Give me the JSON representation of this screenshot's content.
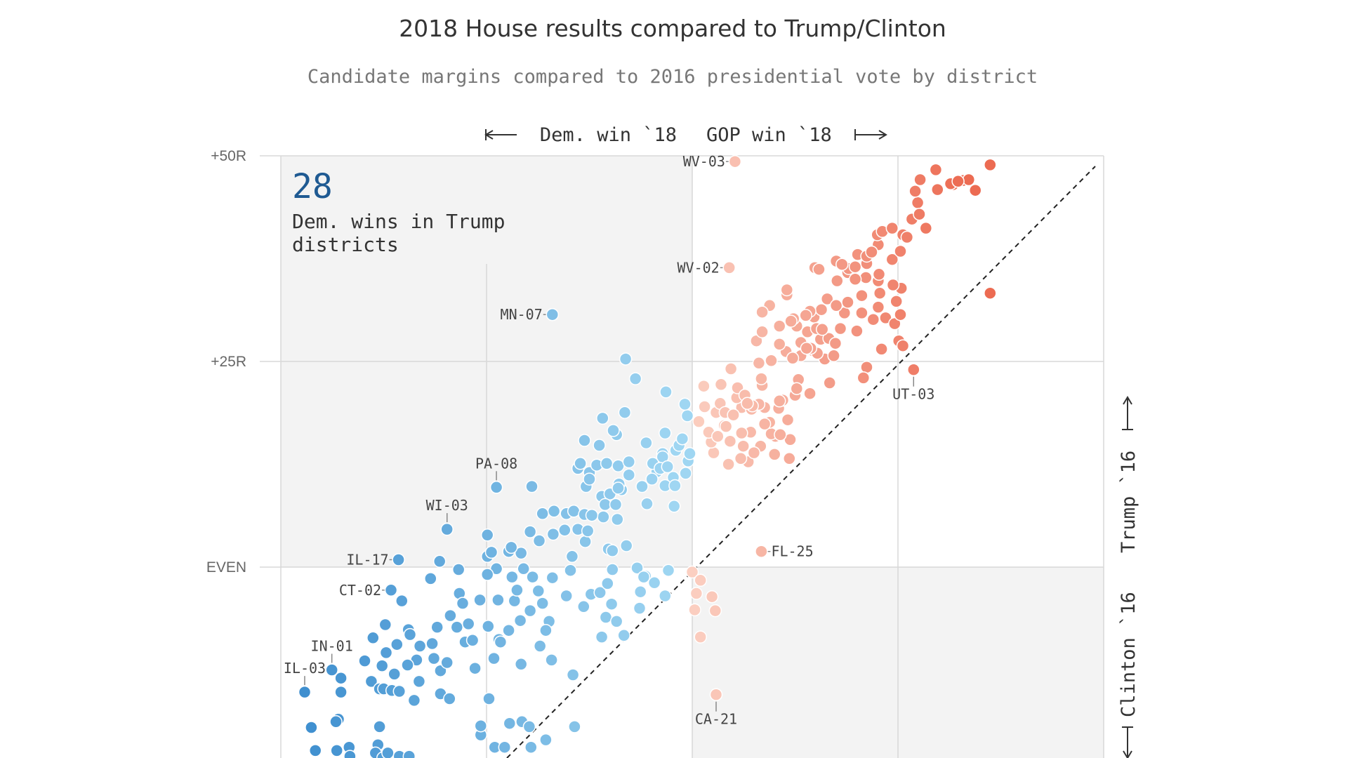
{
  "chart_data": {
    "type": "scatter",
    "title": "2018 House results compared to Trump/Clinton",
    "subtitle": "Candidate margins compared to 2016 presidential vote by district",
    "x_axis": {
      "left_label": "Dem. win `18",
      "right_label": "GOP win `18",
      "range": [
        -50,
        50
      ]
    },
    "y_axis": {
      "ticks": [
        "+50R",
        "+25R",
        "EVEN"
      ],
      "tick_values": [
        50,
        25,
        0
      ],
      "top_label": "Trump `16",
      "bottom_label": "Clinton `16",
      "range": [
        -24,
        50
      ]
    },
    "callout": {
      "number": "28",
      "line1": "Dem. wins in Trump",
      "line2": "districts"
    },
    "colors": {
      "dem_dark": "#3f8fcf",
      "dem_light": "#9fd6f2",
      "gop_dark": "#ec6b52",
      "gop_light": "#fbcfc1",
      "callout_number": "#1f5a92"
    },
    "labels": [
      {
        "name": "WV-03",
        "x": 5.2,
        "y": 49.3
      },
      {
        "name": "WV-02",
        "x": 4.5,
        "y": 36.4
      },
      {
        "name": "MN-07",
        "x": -17.0,
        "y": 30.7
      },
      {
        "name": "UT-03",
        "x": 26.9,
        "y": 24.0
      },
      {
        "name": "PA-08",
        "x": -23.8,
        "y": 9.7
      },
      {
        "name": "WI-03",
        "x": -29.8,
        "y": 4.6
      },
      {
        "name": "IL-17",
        "x": -35.7,
        "y": 0.9
      },
      {
        "name": "CT-02",
        "x": -36.6,
        "y": -2.8
      },
      {
        "name": "FL-25",
        "x": 8.4,
        "y": 1.9
      },
      {
        "name": "IN-01",
        "x": -43.8,
        "y": -12.5
      },
      {
        "name": "IL-03",
        "x": -47.1,
        "y": -15.2
      },
      {
        "name": "CA-21",
        "x": 2.9,
        "y": -15.5
      }
    ],
    "points": [
      [
        -47.1,
        -15.2
      ],
      [
        -46.3,
        -19.5
      ],
      [
        -45.8,
        -22.3
      ],
      [
        -43.8,
        -12.5
      ],
      [
        -42.7,
        -13.5
      ],
      [
        -42.7,
        -15.2
      ],
      [
        -43.0,
        -18.5
      ],
      [
        -43.3,
        -18.8
      ],
      [
        -43.2,
        -22.3
      ],
      [
        -41.7,
        -21.9
      ],
      [
        -41.6,
        -23.0
      ],
      [
        -39.8,
        -11.4
      ],
      [
        -39.0,
        -13.9
      ],
      [
        -38.0,
        -14.8
      ],
      [
        -37.7,
        -12.0
      ],
      [
        -37.5,
        -14.8
      ],
      [
        -38.0,
        -19.4
      ],
      [
        -38.2,
        -21.6
      ],
      [
        -38.5,
        -22.6
      ],
      [
        -37.6,
        -23.2
      ],
      [
        -37.0,
        -22.6
      ],
      [
        -36.6,
        -2.8
      ],
      [
        -37.3,
        -7.0
      ],
      [
        -35.3,
        -4.1
      ],
      [
        -34.5,
        -7.6
      ],
      [
        -34.3,
        -8.2
      ],
      [
        -33.1,
        -9.6
      ],
      [
        -33.5,
        -11.3
      ],
      [
        -34.6,
        -11.9
      ],
      [
        -36.5,
        -15.0
      ],
      [
        -35.6,
        -15.1
      ],
      [
        -33.8,
        -16.2
      ],
      [
        -35.6,
        -23.0
      ],
      [
        -34.4,
        -23.0
      ],
      [
        -31.6,
        -9.3
      ],
      [
        -31.4,
        -11.1
      ],
      [
        -30.6,
        -12.6
      ],
      [
        -29.8,
        -11.6
      ],
      [
        -30.6,
        -15.4
      ],
      [
        -29.5,
        -16.0
      ],
      [
        -26.4,
        -12.3
      ],
      [
        -27.6,
        -9.1
      ],
      [
        -28.6,
        -7.3
      ],
      [
        -29.4,
        -5.9
      ],
      [
        -28.3,
        -3.2
      ],
      [
        -27.2,
        -6.9
      ],
      [
        -24.8,
        -7.2
      ],
      [
        -23.5,
        -8.8
      ],
      [
        -24.7,
        -16.0
      ],
      [
        -20.8,
        -11.8
      ],
      [
        -25.7,
        -20.4
      ],
      [
        -25.7,
        -19.3
      ],
      [
        -24.0,
        -21.9
      ],
      [
        -19.6,
        -21.9
      ],
      [
        -22.2,
        -19.0
      ],
      [
        -21.6,
        -4.1
      ],
      [
        -27.9,
        -4.4
      ],
      [
        -25.8,
        -4.0
      ],
      [
        -23.6,
        -4.0
      ],
      [
        -21.9,
        -1.2
      ],
      [
        -19.4,
        -1.2
      ],
      [
        -18.7,
        -2.9
      ],
      [
        -18.2,
        -4.4
      ],
      [
        -19.7,
        -5.3
      ],
      [
        -21.3,
        -2.8
      ],
      [
        -20.9,
        -6.5
      ],
      [
        -17.4,
        -6.6
      ],
      [
        -17.0,
        -1.3
      ],
      [
        -20.5,
        -0.2
      ],
      [
        -23.8,
        -0.2
      ],
      [
        -24.9,
        -0.9
      ],
      [
        -28.4,
        -0.3
      ],
      [
        -24.9,
        1.3
      ],
      [
        -24.4,
        1.8
      ],
      [
        -22.3,
        1.9
      ],
      [
        -20.8,
        1.7
      ],
      [
        -18.6,
        3.2
      ],
      [
        -19.7,
        4.3
      ],
      [
        -16.9,
        4.0
      ],
      [
        -15.5,
        4.5
      ],
      [
        -13.9,
        4.6
      ],
      [
        -15.3,
        6.5
      ],
      [
        -18.2,
        6.5
      ],
      [
        -16.8,
        6.8
      ],
      [
        -14.4,
        6.8
      ],
      [
        -24.9,
        3.9
      ],
      [
        -22.0,
        2.4
      ],
      [
        -15.3,
        -3.5
      ],
      [
        -17.8,
        -7.7
      ],
      [
        -17.1,
        -11.3
      ],
      [
        -14.5,
        -13.1
      ],
      [
        -20.7,
        -18.8
      ],
      [
        -19.8,
        -19.4
      ],
      [
        -17.8,
        -21.0
      ],
      [
        -14.3,
        -19.4
      ],
      [
        -22.8,
        -21.9
      ],
      [
        -23.3,
        -9.1
      ],
      [
        -30.7,
        0.7
      ],
      [
        -31.8,
        -1.4
      ],
      [
        -37.2,
        -10.4
      ],
      [
        -35.9,
        -9.4
      ],
      [
        -31.0,
        -7.3
      ],
      [
        -36.2,
        -13.0
      ],
      [
        -33.2,
        -13.9
      ],
      [
        -38.8,
        -8.6
      ],
      [
        -26.7,
        -8.9
      ],
      [
        -18.5,
        -9.6
      ],
      [
        -22.3,
        -7.7
      ],
      [
        -24.1,
        -11.1
      ],
      [
        -14.6,
        1.3
      ],
      [
        -14.8,
        -0.4
      ],
      [
        -13.9,
        12.0
      ],
      [
        -13.6,
        12.6
      ],
      [
        -13.1,
        15.4
      ],
      [
        -12.5,
        11.5
      ],
      [
        -19.5,
        9.8
      ],
      [
        -23.8,
        9.7
      ],
      [
        -29.8,
        4.6
      ],
      [
        -35.7,
        0.9
      ],
      [
        -17.0,
        30.7
      ],
      [
        -13.1,
        6.4
      ],
      [
        -13.0,
        3.1
      ],
      [
        -11.3,
        14.8
      ],
      [
        -11.0,
        8.6
      ],
      [
        -12.9,
        9.8
      ],
      [
        -8.6,
        9.4
      ],
      [
        -12.5,
        10.7
      ],
      [
        -11.6,
        12.4
      ],
      [
        -10.4,
        12.6
      ],
      [
        -9.0,
        12.3
      ],
      [
        -7.7,
        12.8
      ],
      [
        -7.7,
        11.2
      ],
      [
        -8.9,
        10.1
      ],
      [
        -10.0,
        8.9
      ],
      [
        -10.6,
        7.6
      ],
      [
        -9.3,
        7.6
      ],
      [
        -10.8,
        6.1
      ],
      [
        -12.2,
        6.3
      ],
      [
        -12.7,
        4.4
      ],
      [
        -9.1,
        5.8
      ],
      [
        -10.2,
        2.2
      ],
      [
        -12.3,
        -3.3
      ],
      [
        -11.2,
        -3.1
      ],
      [
        -9.8,
        -4.5
      ],
      [
        -13.2,
        -4.8
      ],
      [
        -10.3,
        -2.0
      ],
      [
        -10.5,
        -6.1
      ],
      [
        -11.0,
        -8.5
      ],
      [
        -9.2,
        -6.6
      ],
      [
        -9.2,
        16.1
      ],
      [
        -10.9,
        18.1
      ],
      [
        -8.2,
        18.8
      ],
      [
        -5.6,
        15.1
      ],
      [
        -3.6,
        13.8
      ],
      [
        -4.3,
        11.6
      ],
      [
        -2.3,
        10.9
      ],
      [
        -3.6,
        13.4
      ],
      [
        -4.8,
        12.6
      ],
      [
        -3.3,
        9.9
      ],
      [
        -5.5,
        7.7
      ],
      [
        -6.1,
        9.8
      ],
      [
        -4.9,
        10.7
      ],
      [
        -3.9,
        12.0
      ],
      [
        -3.0,
        12.2
      ],
      [
        -0.8,
        11.4
      ],
      [
        -0.5,
        12.9
      ],
      [
        -2.0,
        14.2
      ],
      [
        -1.6,
        14.8
      ],
      [
        -3.3,
        16.3
      ],
      [
        -1.2,
        15.6
      ],
      [
        -0.3,
        13.8
      ],
      [
        -2.1,
        9.9
      ],
      [
        -2.2,
        7.4
      ],
      [
        0.0,
        -0.6
      ],
      [
        -3.3,
        -3.5
      ],
      [
        -5.7,
        -1.1
      ],
      [
        -2.9,
        -0.4
      ],
      [
        -6.7,
        -0.1
      ],
      [
        -5.9,
        -1.2
      ],
      [
        -6.3,
        -3.0
      ],
      [
        -4.6,
        -1.9
      ],
      [
        -6.4,
        -5.0
      ],
      [
        -8.3,
        -8.3
      ],
      [
        -9.7,
        -0.3
      ],
      [
        -9.7,
        2.0
      ],
      [
        -8.0,
        2.6
      ],
      [
        -9.6,
        16.6
      ],
      [
        -9.0,
        9.6
      ],
      [
        -6.9,
        22.9
      ],
      [
        -8.1,
        25.3
      ],
      [
        -3.2,
        21.3
      ],
      [
        -0.6,
        18.4
      ],
      [
        -0.9,
        19.8
      ],
      [
        1.4,
        22.0
      ],
      [
        3.5,
        22.2
      ],
      [
        0.8,
        17.7
      ],
      [
        1.5,
        19.5
      ],
      [
        2.9,
        18.8
      ],
      [
        3.4,
        19.9
      ],
      [
        3.9,
        17.2
      ],
      [
        4.6,
        15.3
      ],
      [
        4.9,
        18.5
      ],
      [
        6.0,
        19.4
      ],
      [
        7.2,
        19.2
      ],
      [
        7.1,
        16.4
      ],
      [
        6.2,
        14.7
      ],
      [
        2.6,
        13.9
      ],
      [
        4.4,
        12.5
      ],
      [
        6.8,
        12.8
      ],
      [
        8.3,
        14.7
      ],
      [
        10.0,
        13.7
      ],
      [
        11.8,
        13.2
      ],
      [
        11.9,
        15.5
      ],
      [
        10.1,
        15.9
      ],
      [
        9.6,
        16.2
      ],
      [
        9.4,
        17.6
      ],
      [
        11.6,
        17.9
      ],
      [
        10.5,
        19.3
      ],
      [
        11.0,
        20.3
      ],
      [
        12.5,
        20.9
      ],
      [
        14.3,
        21.1
      ],
      [
        12.9,
        22.8
      ],
      [
        8.1,
        24.8
      ],
      [
        13.2,
        25.7
      ],
      [
        14.7,
        26.3
      ],
      [
        16.1,
        25.3
      ],
      [
        15.6,
        27.7
      ],
      [
        7.8,
        27.5
      ],
      [
        8.5,
        28.6
      ],
      [
        10.6,
        29.3
      ],
      [
        12.7,
        29.3
      ],
      [
        14.0,
        28.6
      ],
      [
        14.8,
        30.4
      ],
      [
        15.7,
        31.3
      ],
      [
        16.4,
        32.6
      ],
      [
        18.5,
        30.9
      ],
      [
        20.6,
        30.9
      ],
      [
        22.0,
        30.1
      ],
      [
        23.5,
        30.3
      ],
      [
        24.6,
        29.6
      ],
      [
        22.8,
        33.3
      ],
      [
        21.1,
        35.2
      ],
      [
        18.9,
        35.8
      ],
      [
        19.0,
        36.3
      ],
      [
        17.5,
        37.2
      ],
      [
        20.1,
        38.0
      ],
      [
        22.6,
        39.2
      ],
      [
        22.5,
        40.4
      ],
      [
        23.1,
        40.8
      ],
      [
        24.3,
        41.2
      ],
      [
        25.6,
        40.4
      ],
      [
        26.7,
        42.3
      ],
      [
        28.4,
        41.2
      ],
      [
        27.4,
        44.3
      ],
      [
        27.1,
        45.7
      ],
      [
        27.7,
        47.1
      ],
      [
        29.6,
        48.3
      ],
      [
        31.7,
        46.5
      ],
      [
        32.9,
        47.0
      ],
      [
        33.6,
        47.1
      ],
      [
        36.2,
        48.9
      ],
      [
        36.2,
        33.3
      ],
      [
        26.1,
        40.1
      ],
      [
        24.3,
        37.4
      ],
      [
        21.2,
        36.9
      ],
      [
        22.6,
        34.8
      ],
      [
        25.4,
        33.9
      ],
      [
        24.8,
        32.3
      ],
      [
        22.6,
        31.6
      ],
      [
        25.3,
        30.7
      ],
      [
        25.1,
        27.5
      ],
      [
        23.0,
        26.5
      ],
      [
        25.6,
        26.9
      ],
      [
        26.9,
        24.0
      ],
      [
        21.2,
        24.3
      ],
      [
        20.8,
        23.0
      ],
      [
        16.7,
        22.4
      ],
      [
        15.2,
        26.0
      ],
      [
        16.6,
        27.8
      ],
      [
        14.3,
        31.1
      ],
      [
        17.5,
        31.8
      ],
      [
        18.9,
        32.2
      ],
      [
        11.5,
        33.1
      ],
      [
        9.4,
        31.8
      ],
      [
        8.5,
        31.0
      ],
      [
        12.3,
        30.2
      ],
      [
        11.5,
        33.7
      ],
      [
        14.9,
        36.4
      ],
      [
        15.4,
        36.2
      ],
      [
        17.6,
        34.8
      ],
      [
        18.2,
        36.8
      ],
      [
        22.7,
        35.6
      ],
      [
        20.6,
        33.0
      ],
      [
        12.7,
        21.7
      ],
      [
        10.7,
        16.1
      ],
      [
        8.8,
        19.4
      ],
      [
        8.8,
        17.4
      ],
      [
        5.4,
        20.6
      ],
      [
        4.0,
        18.8
      ],
      [
        5.5,
        21.8
      ],
      [
        6.0,
        16.3
      ],
      [
        7.5,
        13.9
      ],
      [
        8.1,
        19.8
      ],
      [
        7.3,
        19.6
      ],
      [
        6.4,
        20.9
      ],
      [
        4.7,
        24.1
      ],
      [
        2.3,
        15.2
      ],
      [
        2.0,
        16.4
      ],
      [
        3.1,
        15.9
      ],
      [
        4.1,
        17.1
      ],
      [
        5.9,
        13.2
      ],
      [
        8.5,
        22.1
      ],
      [
        10.6,
        20.2
      ],
      [
        9.6,
        25.1
      ],
      [
        11.4,
        26.2
      ],
      [
        8.4,
        22.9
      ],
      [
        6.7,
        19.9
      ],
      [
        5.0,
        18.5
      ],
      [
        13.2,
        27.3
      ],
      [
        14.4,
        26.6
      ],
      [
        12.0,
        29.9
      ],
      [
        13.8,
        30.6
      ],
      [
        15.1,
        29.0
      ],
      [
        10.6,
        27.1
      ],
      [
        13.9,
        26.6
      ],
      [
        12.2,
        25.4
      ],
      [
        20.0,
        28.7
      ],
      [
        17.4,
        27.2
      ],
      [
        15.8,
        28.9
      ],
      [
        18.0,
        29.0
      ],
      [
        17.2,
        25.7
      ],
      [
        19.8,
        35.0
      ],
      [
        21.2,
        37.8
      ],
      [
        24.4,
        34.3
      ],
      [
        19.8,
        36.5
      ],
      [
        21.8,
        38.3
      ],
      [
        25.3,
        38.4
      ],
      [
        27.6,
        42.9
      ],
      [
        29.8,
        45.9
      ],
      [
        31.4,
        46.6
      ],
      [
        32.3,
        46.9
      ],
      [
        34.4,
        45.8
      ],
      [
        5.2,
        49.3
      ],
      [
        4.5,
        36.4
      ],
      [
        8.4,
        1.9
      ],
      [
        2.9,
        -15.5
      ],
      [
        1.0,
        -1.6
      ],
      [
        2.4,
        -3.6
      ],
      [
        2.8,
        -5.3
      ],
      [
        0.3,
        -5.2
      ],
      [
        0.5,
        -3.2
      ],
      [
        1.0,
        -8.5
      ]
    ]
  }
}
